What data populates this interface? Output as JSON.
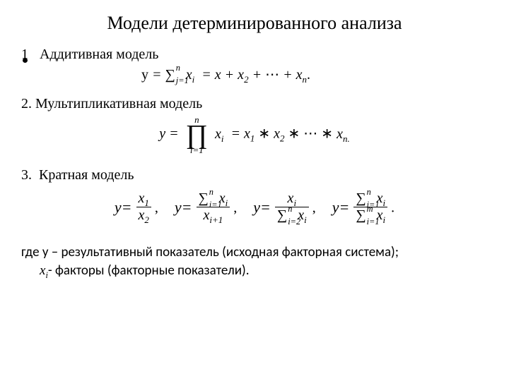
{
  "colors": {
    "text": "#000000",
    "background": "#ffffff"
  },
  "fonts": {
    "serif": "Times New Roman",
    "sans": "Calibri"
  },
  "title": "Модели детерминированного анализа",
  "items": {
    "one": {
      "num": "1",
      "label": "Аддитивная модель"
    },
    "two": {
      "num": "2.",
      "label": "Мультипликативная модель"
    },
    "three": {
      "num": "3.",
      "label": "Кратная модель"
    }
  },
  "eq1": {
    "lhs": "y",
    "sum_lower": "j=1",
    "sum_upper": "n",
    "summand": "xᵢ",
    "rhs_terms": [
      "x",
      "x₂",
      "xₙ"
    ],
    "ellipsis": "⋯",
    "trailing_dot": "."
  },
  "eq2": {
    "lhs": "y",
    "prod_lower": "i=1",
    "prod_upper": "n",
    "operand": "xᵢ",
    "rhs_terms": [
      "x₁",
      "x₂",
      "xₙ."
    ],
    "op": "∗",
    "ellipsis": "⋯"
  },
  "eq3": {
    "a": {
      "num": "x₁",
      "den": "x₂"
    },
    "b": {
      "num_sum_lower": "i=1",
      "num_sum_upper": "n",
      "num_var": "xᵢ",
      "den": "xᵢ₊₁"
    },
    "c": {
      "num": "xᵢ",
      "den_sum_lower": "i=2",
      "den_sum_upper": "n",
      "den_var": "xᵢ"
    },
    "d": {
      "num_sum_lower": "i=1",
      "num_sum_upper": "n",
      "num_var": "xᵢ",
      "den_sum_lower": "i=1",
      "den_sum_upper": "m",
      "den_var": "xᵢ"
    },
    "comma": ",",
    "dot": "."
  },
  "where": {
    "line1_pre": "где y – ",
    "line1_mid": "результативный показатель (исходная факторная система);",
    "line2_var": "xᵢ",
    "line2_post": "- факторы (факторные показатели)."
  }
}
